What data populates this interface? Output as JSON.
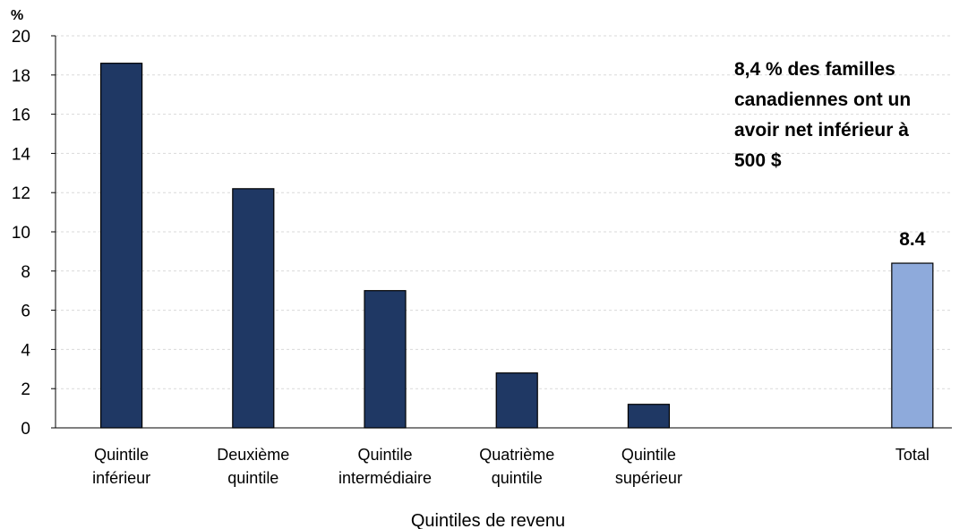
{
  "chart_data": {
    "type": "bar",
    "categories": [
      [
        "Quintile",
        "inférieur"
      ],
      [
        "Deuxième",
        "quintile"
      ],
      [
        "Quintile",
        "intermédiaire"
      ],
      [
        "Quatrième",
        "quintile"
      ],
      [
        "Quintile",
        "supérieur"
      ],
      [
        "Total"
      ]
    ],
    "values": [
      18.6,
      12.2,
      7.0,
      2.8,
      1.2,
      8.4
    ],
    "colors": [
      "#1f3864",
      "#1f3864",
      "#1f3864",
      "#1f3864",
      "#1f3864",
      "#8eaadb"
    ],
    "data_labels": [
      "",
      "",
      "",
      "",
      "",
      "8.4"
    ],
    "ylabel": "%",
    "xlabel": "Quintiles de revenu",
    "ylim": [
      0,
      20
    ],
    "yticks": [
      0,
      2,
      4,
      6,
      8,
      10,
      12,
      14,
      16,
      18,
      20
    ],
    "grid": true,
    "annotation": [
      "8,4 % des familles",
      "canadiennes ont un",
      "avoir net inférieur à",
      "500 $"
    ]
  }
}
